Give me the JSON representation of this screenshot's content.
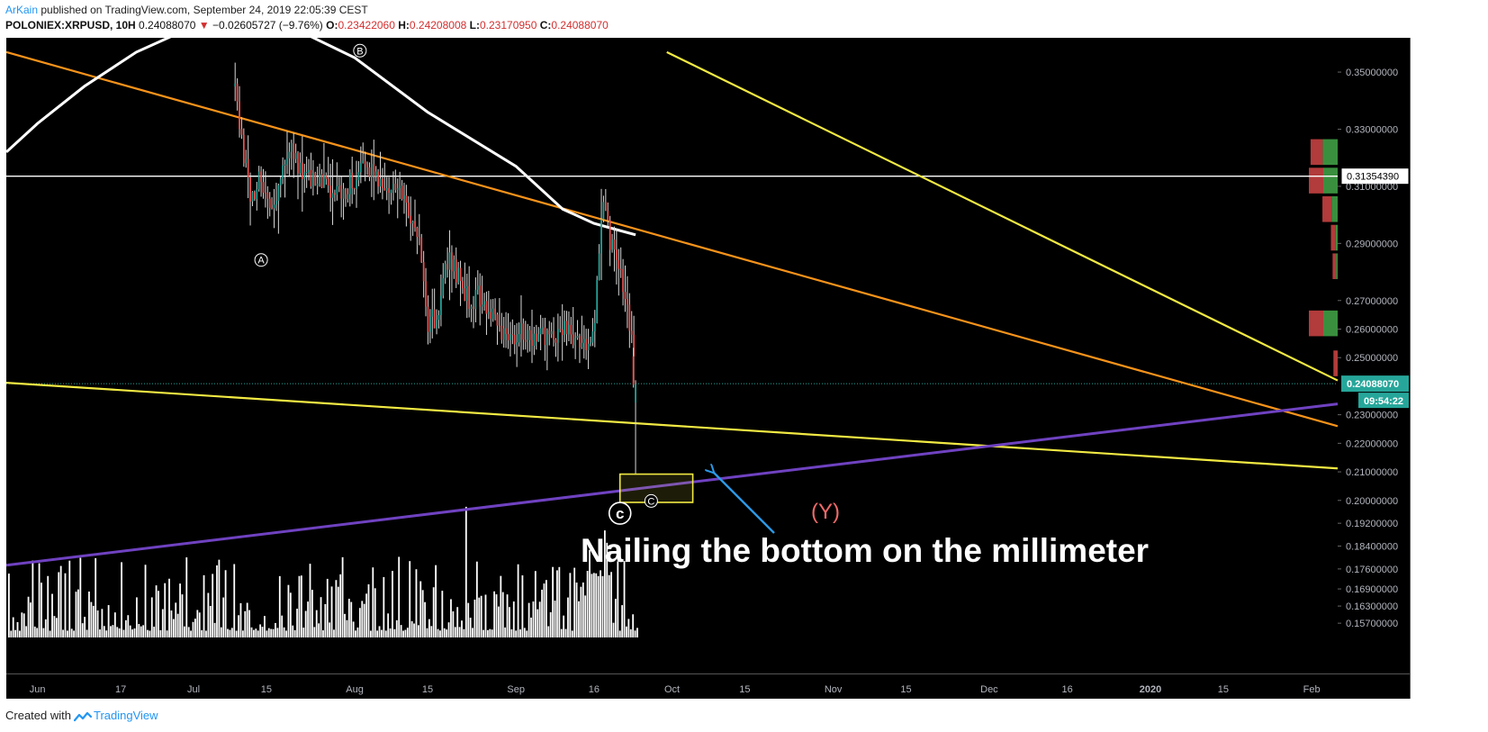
{
  "header": {
    "author": "ArKain",
    "published_text": " published on TradingView.com, September 24, 2019 22:05:39 CEST",
    "symbol": "POLONIEX:XRPUSD, 10H",
    "last": "0.24088070",
    "change_arrow": "▼",
    "change": "−0.02605727 (−9.76%)",
    "open_label": "O:",
    "open": "0.23422060",
    "high_label": "H:",
    "high": "0.24208008",
    "low_label": "L:",
    "low": "0.23170950",
    "close_label": "C:",
    "close": "0.24088070"
  },
  "footer": {
    "created_with": "Created with",
    "brand": "TradingView",
    "logo_icon": "tradingview-logo-icon"
  },
  "colors": {
    "background": "#000000",
    "up": "#26a69a",
    "down": "#ef5350",
    "wick": "#d9d9d9",
    "orange_line": "#f7931a",
    "yellow_line": "#f2ea43",
    "purple_line": "#6f42c1",
    "ma_line": "#ffffff",
    "volume": "#ffffff",
    "annotation_arrow": "#2b9ae8",
    "wave_y": "#f06a6a",
    "price_tag": "#26a69a"
  },
  "chart_data": {
    "type": "candlestick",
    "symbol": "POLONIEX:XRPUSD",
    "interval": "10H",
    "y_axis": {
      "min": 0.152,
      "max": 0.362,
      "tick_labels": [
        "0.35000000",
        "0.33000000",
        "0.31000000",
        "0.29000000",
        "0.27000000",
        "0.26000000",
        "0.25000000",
        "0.23000000",
        "0.22000000",
        "0.21000000",
        "0.20000000",
        "0.19200000",
        "0.18400000",
        "0.17600000",
        "0.16900000",
        "0.16300000",
        "0.15700000"
      ]
    },
    "x_axis": {
      "start": "2019-05-26",
      "end": "2020-02-06",
      "tick_labels": [
        {
          "label": "Jun",
          "date": "2019-06-01"
        },
        {
          "label": "17",
          "date": "2019-06-17"
        },
        {
          "label": "Jul",
          "date": "2019-07-01"
        },
        {
          "label": "15",
          "date": "2019-07-15"
        },
        {
          "label": "Aug",
          "date": "2019-08-01"
        },
        {
          "label": "15",
          "date": "2019-08-15"
        },
        {
          "label": "Sep",
          "date": "2019-09-01"
        },
        {
          "label": "16",
          "date": "2019-09-16"
        },
        {
          "label": "Oct",
          "date": "2019-10-01"
        },
        {
          "label": "15",
          "date": "2019-10-15"
        },
        {
          "label": "Nov",
          "date": "2019-11-01"
        },
        {
          "label": "15",
          "date": "2019-11-15"
        },
        {
          "label": "Dec",
          "date": "2019-12-01"
        },
        {
          "label": "16",
          "date": "2019-12-16"
        },
        {
          "label": "2020",
          "date": "2020-01-01"
        },
        {
          "label": "15",
          "date": "2020-01-15"
        },
        {
          "label": "Feb",
          "date": "2020-02-01"
        }
      ]
    },
    "price_path": [
      {
        "date": "2019-07-09",
        "close": 0.345
      },
      {
        "date": "2019-07-10",
        "close": 0.33
      },
      {
        "date": "2019-07-12",
        "close": 0.305
      },
      {
        "date": "2019-07-14",
        "close": 0.315
      },
      {
        "date": "2019-07-16",
        "close": 0.298
      },
      {
        "date": "2019-07-18",
        "close": 0.318
      },
      {
        "date": "2019-07-20",
        "close": 0.322
      },
      {
        "date": "2019-07-23",
        "close": 0.312
      },
      {
        "date": "2019-07-26",
        "close": 0.31
      },
      {
        "date": "2019-07-29",
        "close": 0.307
      },
      {
        "date": "2019-08-01",
        "close": 0.313
      },
      {
        "date": "2019-08-03",
        "close": 0.318
      },
      {
        "date": "2019-08-06",
        "close": 0.31
      },
      {
        "date": "2019-08-09",
        "close": 0.309
      },
      {
        "date": "2019-08-11",
        "close": 0.302
      },
      {
        "date": "2019-08-13",
        "close": 0.296
      },
      {
        "date": "2019-08-15",
        "close": 0.262
      },
      {
        "date": "2019-08-17",
        "close": 0.265
      },
      {
        "date": "2019-08-19",
        "close": 0.285
      },
      {
        "date": "2019-08-21",
        "close": 0.278
      },
      {
        "date": "2019-08-23",
        "close": 0.27
      },
      {
        "date": "2019-08-25",
        "close": 0.272
      },
      {
        "date": "2019-08-27",
        "close": 0.268
      },
      {
        "date": "2019-08-29",
        "close": 0.258
      },
      {
        "date": "2019-08-31",
        "close": 0.255
      },
      {
        "date": "2019-09-02",
        "close": 0.258
      },
      {
        "date": "2019-09-04",
        "close": 0.256
      },
      {
        "date": "2019-09-06",
        "close": 0.258
      },
      {
        "date": "2019-09-08",
        "close": 0.257
      },
      {
        "date": "2019-09-10",
        "close": 0.262
      },
      {
        "date": "2019-09-12",
        "close": 0.258
      },
      {
        "date": "2019-09-14",
        "close": 0.255
      },
      {
        "date": "2019-09-16",
        "close": 0.26
      },
      {
        "date": "2019-09-17",
        "close": 0.29
      },
      {
        "date": "2019-09-18",
        "close": 0.305
      },
      {
        "date": "2019-09-19",
        "close": 0.292
      },
      {
        "date": "2019-09-20",
        "close": 0.288
      },
      {
        "date": "2019-09-21",
        "close": 0.28
      },
      {
        "date": "2019-09-22",
        "close": 0.268
      },
      {
        "date": "2019-09-23",
        "close": 0.262
      },
      {
        "date": "2019-09-24",
        "close": 0.2409
      }
    ],
    "current_candle": {
      "date": "2019-09-24",
      "open": 0.2342206,
      "high": 0.24208008,
      "low": 0.2317095,
      "close": 0.2408807
    },
    "horizontal_lines": [
      {
        "price": 0.3135439,
        "label": "0.31354390"
      },
      {
        "price": 0.2408807,
        "label": "0.24088070",
        "style": "dotted"
      }
    ],
    "countdown": "09:54:22",
    "trendlines": [
      {
        "name": "orange",
        "from": {
          "date": "2019-05-26",
          "price": 0.357
        },
        "to": {
          "date": "2020-02-06",
          "price": 0.226
        }
      },
      {
        "name": "yellow-upper",
        "from": {
          "date": "2019-09-30",
          "price": 0.357
        },
        "to": {
          "date": "2020-02-06",
          "price": 0.242
        }
      },
      {
        "name": "yellow-lower",
        "from": {
          "date": "2019-05-26",
          "price": 0.2412
        },
        "to": {
          "date": "2020-02-06",
          "price": 0.2112
        }
      },
      {
        "name": "purple",
        "from": {
          "date": "2019-05-26",
          "price": 0.1773
        },
        "to": {
          "date": "2020-02-06",
          "price": 0.2338
        }
      }
    ],
    "moving_average": [
      {
        "date": "2019-05-26",
        "price": 0.322
      },
      {
        "date": "2019-06-01",
        "price": 0.332
      },
      {
        "date": "2019-06-10",
        "price": 0.345
      },
      {
        "date": "2019-06-20",
        "price": 0.357
      },
      {
        "date": "2019-07-01",
        "price": 0.366
      },
      {
        "date": "2019-07-15",
        "price": 0.37
      },
      {
        "date": "2019-08-01",
        "price": 0.355
      },
      {
        "date": "2019-08-15",
        "price": 0.336
      },
      {
        "date": "2019-09-01",
        "price": 0.317
      },
      {
        "date": "2019-09-10",
        "price": 0.302
      },
      {
        "date": "2019-09-16",
        "price": 0.297
      },
      {
        "date": "2019-09-20",
        "price": 0.295
      },
      {
        "date": "2019-09-24",
        "price": 0.293
      }
    ],
    "wave_labels": [
      {
        "label": "A",
        "date": "2019-07-14",
        "price": 0.2842
      },
      {
        "label": "B",
        "date": "2019-08-02",
        "price": 0.3575
      },
      {
        "label": "C",
        "date": "2019-09-21",
        "price": 0.1955,
        "large": true
      },
      {
        "label": "C",
        "date": "2019-09-27",
        "price": 0.1998
      }
    ],
    "annotation_box": {
      "date_start": "2019-09-21",
      "date_end": "2019-10-05",
      "price_top": 0.2092,
      "price_bottom": 0.1993
    },
    "annotation_text": "Nailing the bottom on the millimeter",
    "wave_y_label": "(Y)",
    "volume_profile": [
      {
        "price": 0.322,
        "volume": 3.2,
        "up_share": 0.55
      },
      {
        "price": 0.312,
        "volume": 3.4,
        "up_share": 0.5
      },
      {
        "price": 0.302,
        "volume": 1.8,
        "up_share": 0.4
      },
      {
        "price": 0.292,
        "volume": 0.8,
        "up_share": 0.3
      },
      {
        "price": 0.282,
        "volume": 0.6,
        "up_share": 0.3
      },
      {
        "price": 0.262,
        "volume": 3.4,
        "up_share": 0.5
      },
      {
        "price": 0.248,
        "volume": 0.5,
        "up_share": 0.0
      }
    ]
  }
}
